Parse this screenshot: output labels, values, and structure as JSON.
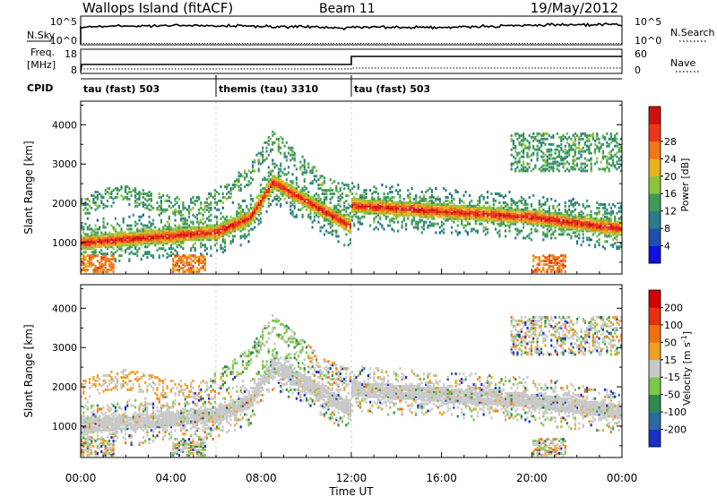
{
  "header": {
    "station": "Wallops Island (fitACF)",
    "beam": "Beam 11",
    "date": "19/May/2012"
  },
  "panels": {
    "nsky": {
      "label": "N.Sky",
      "right_label": "N.Search",
      "left_ticks": [
        "10^5",
        "10^0"
      ],
      "right_ticks": [
        "10^5",
        "10^0"
      ]
    },
    "freq": {
      "label_line1": "Freq.",
      "label_line2": "[MHz]",
      "right_label": "Nave",
      "left_ticks": [
        "18",
        "8"
      ],
      "right_ticks": [
        "60",
        "0"
      ]
    },
    "cpid": {
      "label": "CPID",
      "segments": [
        {
          "label": "tau (fast) 503",
          "start_h": 0,
          "end_h": 6
        },
        {
          "label": "themis (tau) 3310",
          "start_h": 6,
          "end_h": 12
        },
        {
          "label": "tau (fast) 503",
          "start_h": 12,
          "end_h": 24
        }
      ]
    }
  },
  "chart_data": [
    {
      "type": "heatmap",
      "name": "power",
      "ylabel": "Slant Range [km]",
      "yticks": [
        1000,
        2000,
        3000,
        4000
      ],
      "ylim": [
        200,
        4600
      ],
      "xlim": [
        0,
        24
      ],
      "colorbar": {
        "label": "Power [dB]",
        "ticks": [
          "4",
          "8",
          "12",
          "16",
          "20",
          "24",
          "28"
        ],
        "colors": [
          "#1010e0",
          "#1d4fb0",
          "#2a7c8a",
          "#3f9a5a",
          "#8bc43a",
          "#e8b21c",
          "#f07818",
          "#e83818",
          "#d01010"
        ]
      }
    },
    {
      "type": "heatmap",
      "name": "velocity",
      "ylabel": "Slant Range [km]",
      "yticks": [
        1000,
        2000,
        3000,
        4000
      ],
      "ylim": [
        200,
        4600
      ],
      "xlim": [
        0,
        24
      ],
      "colorbar": {
        "label": "Velocity [m s",
        "label_sup": "-1",
        "label_end": "]",
        "ticks": [
          "200",
          "100",
          "50",
          "15",
          "-15",
          "-50",
          "-100",
          "-200"
        ],
        "colors": [
          "#1a2fc8",
          "#2a6aa0",
          "#2e8a4a",
          "#7cc84a",
          "#c8c8c8",
          "#f0a020",
          "#f07010",
          "#e83010",
          "#d00000"
        ]
      }
    }
  ],
  "xaxis": {
    "label": "Time UT",
    "ticks": [
      "00:00",
      "04:00",
      "08:00",
      "12:00",
      "16:00",
      "20:00",
      "00:00"
    ]
  }
}
